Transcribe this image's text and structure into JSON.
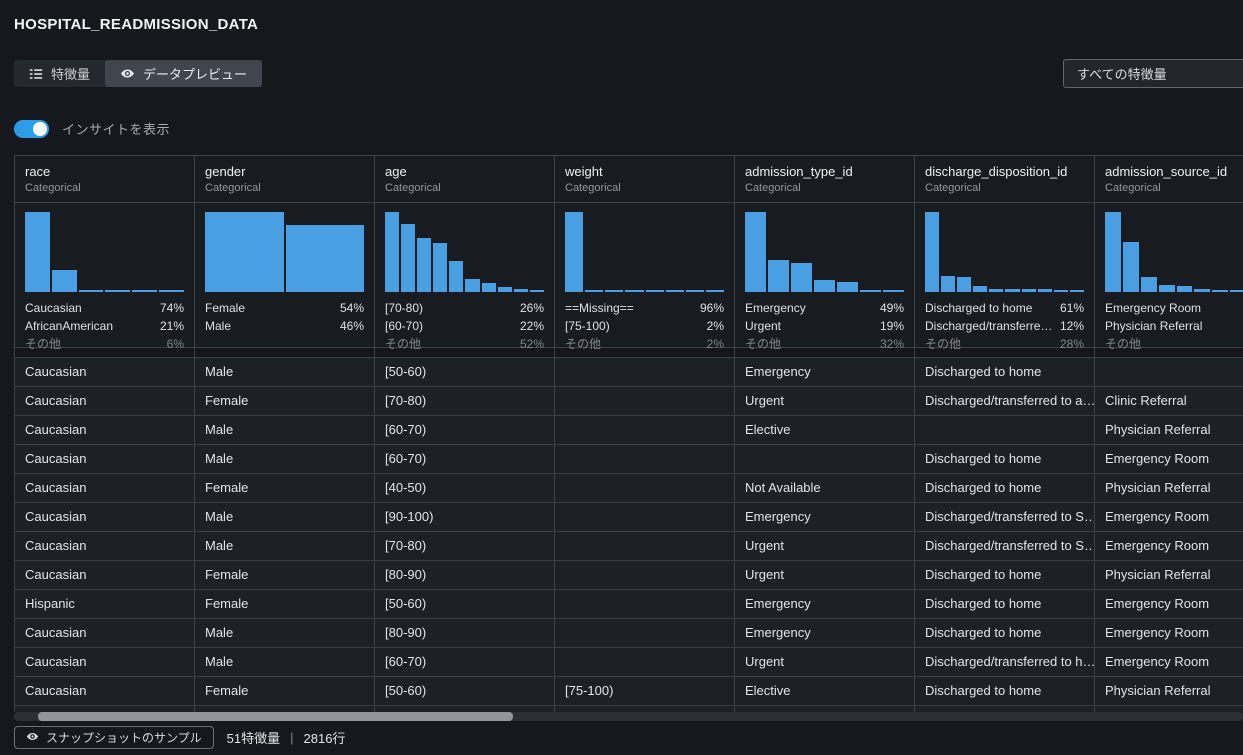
{
  "header": {
    "title": "HOSPITAL_READMISSION_DATA"
  },
  "tabs": [
    {
      "label": "特徴量",
      "active": false
    },
    {
      "label": "データプレビュー",
      "active": true
    }
  ],
  "feature_filter": {
    "value": "すべての特徴量"
  },
  "insights_toggle": {
    "label": "インサイトを表示",
    "on": true
  },
  "colors": {
    "accent_blue": "#4a9fe2",
    "toggle_blue": "#2b9ee8"
  },
  "columns": [
    {
      "name": "race",
      "type": "Categorical",
      "hist": [
        100,
        28,
        3,
        2.5,
        2,
        1.5
      ],
      "stats": [
        {
          "label": "Caucasian",
          "pct": "74%"
        },
        {
          "label": "AfricanAmerican",
          "pct": "21%"
        },
        {
          "label": "その他",
          "pct": "6%",
          "muted": true
        }
      ]
    },
    {
      "name": "gender",
      "type": "Categorical",
      "hist": [
        100,
        84
      ],
      "stats": [
        {
          "label": "Female",
          "pct": "54%"
        },
        {
          "label": "Male",
          "pct": "46%"
        }
      ]
    },
    {
      "name": "age",
      "type": "Categorical",
      "hist": [
        100,
        85,
        68,
        61,
        39,
        16,
        11,
        6.5,
        4,
        1.5
      ],
      "stats": [
        {
          "label": "[70-80)",
          "pct": "26%"
        },
        {
          "label": "[60-70)",
          "pct": "22%"
        },
        {
          "label": "その他",
          "pct": "52%",
          "muted": true
        }
      ]
    },
    {
      "name": "weight",
      "type": "Categorical",
      "hist": [
        100,
        2,
        1.5,
        1.5,
        1.5,
        1.5,
        1.5,
        1.5
      ],
      "stats": [
        {
          "label": "==Missing==",
          "pct": "96%"
        },
        {
          "label": "[75-100)",
          "pct": "2%"
        },
        {
          "label": "その他",
          "pct": "2%",
          "muted": true
        }
      ]
    },
    {
      "name": "admission_type_id",
      "type": "Categorical",
      "hist": [
        100,
        40,
        36,
        15,
        12,
        1.5,
        1.5
      ],
      "stats": [
        {
          "label": "Emergency",
          "pct": "49%"
        },
        {
          "label": "Urgent",
          "pct": "19%"
        },
        {
          "label": "その他",
          "pct": "32%",
          "muted": true
        }
      ]
    },
    {
      "name": "discharge_disposition_id",
      "type": "Categorical",
      "hist": [
        100,
        20,
        19,
        8,
        4,
        3.5,
        3.5,
        3.5,
        3,
        2
      ],
      "stats": [
        {
          "label": "Discharged to home",
          "pct": "61%"
        },
        {
          "label": "Discharged/transferred to S…",
          "pct": "12%"
        },
        {
          "label": "その他",
          "pct": "28%",
          "muted": true
        }
      ]
    },
    {
      "name": "admission_source_id",
      "type": "Categorical",
      "hist": [
        100,
        62,
        19,
        8.5,
        7.5,
        4,
        2.5,
        1,
        1
      ],
      "stats": [
        {
          "label": "Emergency Room",
          "pct": ""
        },
        {
          "label": "Physician Referral",
          "pct": ""
        },
        {
          "label": "その他",
          "pct": "",
          "muted": true
        }
      ]
    }
  ],
  "rows": [
    [
      "Caucasian",
      "Male",
      "[50-60)",
      "",
      "Emergency",
      "Discharged to home",
      ""
    ],
    [
      "Caucasian",
      "Female",
      "[70-80)",
      "",
      "Urgent",
      "Discharged/transferred to a…",
      "Clinic Referral"
    ],
    [
      "Caucasian",
      "Male",
      "[60-70)",
      "",
      "Elective",
      "",
      "Physician Referral"
    ],
    [
      "Caucasian",
      "Male",
      "[60-70)",
      "",
      "",
      "Discharged to home",
      "Emergency Room"
    ],
    [
      "Caucasian",
      "Female",
      "[40-50)",
      "",
      "Not Available",
      "Discharged to home",
      "Physician Referral"
    ],
    [
      "Caucasian",
      "Male",
      "[90-100)",
      "",
      "Emergency",
      "Discharged/transferred to S…",
      "Emergency Room"
    ],
    [
      "Caucasian",
      "Male",
      "[70-80)",
      "",
      "Urgent",
      "Discharged/transferred to S…",
      "Emergency Room"
    ],
    [
      "Caucasian",
      "Female",
      "[80-90)",
      "",
      "Urgent",
      "Discharged to home",
      "Physician Referral"
    ],
    [
      "Hispanic",
      "Female",
      "[50-60)",
      "",
      "Emergency",
      "Discharged to home",
      "Emergency Room"
    ],
    [
      "Caucasian",
      "Male",
      "[80-90)",
      "",
      "Emergency",
      "Discharged to home",
      "Emergency Room"
    ],
    [
      "Caucasian",
      "Male",
      "[60-70)",
      "",
      "Urgent",
      "Discharged/transferred to h…",
      "Emergency Room"
    ],
    [
      "Caucasian",
      "Female",
      "[50-60)",
      "[75-100)",
      "Elective",
      "Discharged to home",
      "Physician Referral"
    ],
    [
      "",
      "",
      "",
      "",
      "",
      "",
      ""
    ]
  ],
  "footer": {
    "snapshot_label": "スナップショットのサンプル",
    "features_count": "51特徴量",
    "separator": "|",
    "rows_count": "2816行"
  }
}
